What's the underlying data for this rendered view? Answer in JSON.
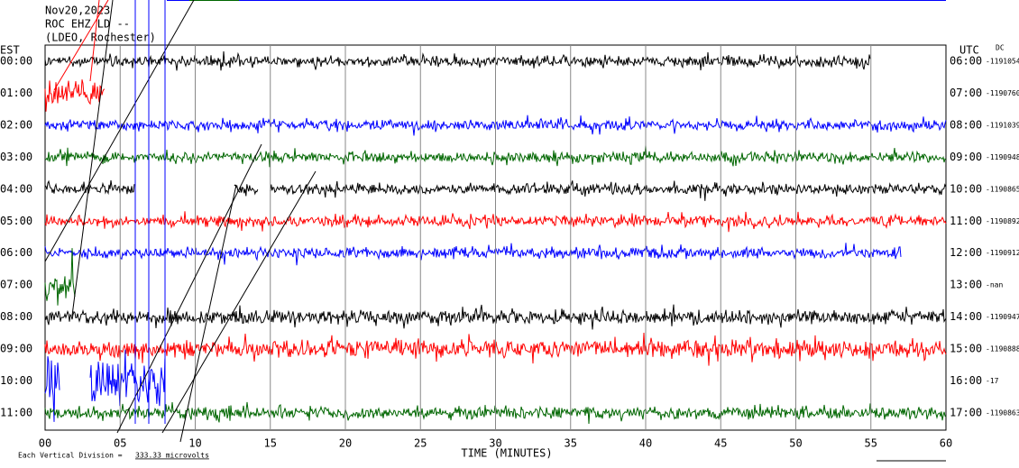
{
  "header": {
    "date": "Nov20,2023",
    "station": "ROC EHZ LD --",
    "location": "(LDEO, Rochester)"
  },
  "left_axis_title": "EST",
  "right_axis_title": "UTC",
  "dc_title": "DC",
  "rows": [
    {
      "est": "00:00",
      "utc": "06:00",
      "dc": "-1191054",
      "color": "#000000"
    },
    {
      "est": "01:00",
      "utc": "07:00",
      "dc": "-1190760",
      "color": "#ff0000"
    },
    {
      "est": "02:00",
      "utc": "08:00",
      "dc": "-1191039",
      "color": "#0000ff"
    },
    {
      "est": "03:00",
      "utc": "09:00",
      "dc": "-1190948",
      "color": "#006600"
    },
    {
      "est": "04:00",
      "utc": "10:00",
      "dc": "-1190865",
      "color": "#000000"
    },
    {
      "est": "05:00",
      "utc": "11:00",
      "dc": "-1190892",
      "color": "#ff0000"
    },
    {
      "est": "06:00",
      "utc": "12:00",
      "dc": "-1190912",
      "color": "#0000ff"
    },
    {
      "est": "07:00",
      "utc": "13:00",
      "dc": "-nan",
      "color": "#006600"
    },
    {
      "est": "08:00",
      "utc": "14:00",
      "dc": "-1190947",
      "color": "#000000"
    },
    {
      "est": "09:00",
      "utc": "15:00",
      "dc": "-1190888",
      "color": "#ff0000"
    },
    {
      "est": "10:00",
      "utc": "16:00",
      "dc": "-17",
      "color": "#0000ff"
    },
    {
      "est": "11:00",
      "utc": "17:00",
      "dc": "-1190863",
      "color": "#006600"
    }
  ],
  "x_ticks": [
    "00",
    "05",
    "10",
    "15",
    "20",
    "25",
    "30",
    "35",
    "40",
    "45",
    "50",
    "55",
    "60"
  ],
  "x_axis_title": "TIME (MINUTES)",
  "scale_note": "Each Vertical Division =",
  "scale_value": "333.33 microvolts"
}
